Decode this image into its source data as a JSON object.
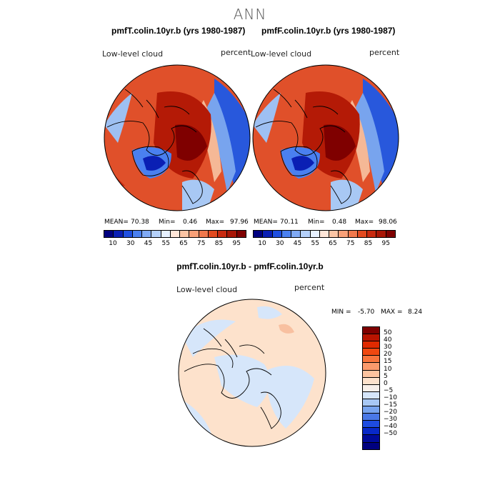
{
  "figure_title": "ANN",
  "panels": [
    {
      "title": "pmfT.colin.10yr.b (yrs 1980-1987)",
      "variable": "Low-level cloud",
      "units": "percent",
      "stats": {
        "mean_label": "MEAN=",
        "mean": "70.38",
        "min_label": "Min=",
        "min": "0.46",
        "max_label": "Max=",
        "max": "97.96"
      }
    },
    {
      "title": "pmfF.colin.10yr.b (yrs 1980-1987)",
      "variable": "Low-level cloud",
      "units": "percent",
      "stats": {
        "mean_label": "MEAN=",
        "mean": "70.11",
        "min_label": "Min=",
        "min": "0.48",
        "max_label": "Max=",
        "max": "98.06"
      }
    }
  ],
  "colorbar": {
    "ticks": [
      "10",
      "30",
      "45",
      "55",
      "65",
      "75",
      "85",
      "95"
    ],
    "colors": [
      "#00007f",
      "#0a1fb4",
      "#1f4fe0",
      "#4a80f0",
      "#80aaf5",
      "#b4d0fa",
      "#e6f0ff",
      "#ffe6d8",
      "#fbc4a4",
      "#f8a078",
      "#f0784c",
      "#e24a20",
      "#c82a10",
      "#a81606",
      "#7f0000"
    ]
  },
  "difference_panel": {
    "title": "pmfT.colin.10yr.b - pmfF.colin.10yr.b",
    "variable": "Low-level cloud",
    "units": "percent",
    "min_label": "MIN =",
    "min": "-5.70",
    "max_label": "MAX =",
    "max": "8.24",
    "colorbar_ticks": [
      "50",
      "40",
      "30",
      "20",
      "15",
      "10",
      "5",
      "0",
      "−5",
      "−10",
      "−15",
      "−20",
      "−30",
      "−40",
      "−50"
    ],
    "colorbar_colors": [
      "#7f0000",
      "#b81400",
      "#e02a00",
      "#f04810",
      "#f8743c",
      "#fb9a6c",
      "#fdc4a0",
      "#fde2cc",
      "#f8f0ea",
      "#d6e6fa",
      "#a8c8f4",
      "#78a4ee",
      "#4a78e6",
      "#1e4ce0",
      "#0828c8",
      "#000a9a",
      "#00007f"
    ]
  }
}
